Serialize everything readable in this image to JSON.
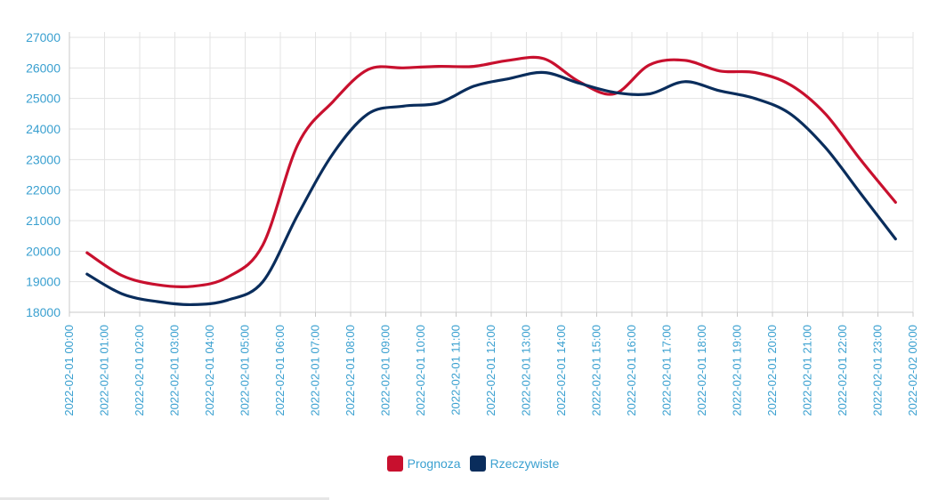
{
  "chart_data": {
    "type": "line",
    "ylim": [
      18000,
      27000
    ],
    "yticks": [
      18000,
      19000,
      20000,
      21000,
      22000,
      23000,
      24000,
      25000,
      26000,
      27000
    ],
    "xticks": [
      "2022-02-01 00:00",
      "2022-02-01 01:00",
      "2022-02-01 02:00",
      "2022-02-01 03:00",
      "2022-02-01 04:00",
      "2022-02-01 05:00",
      "2022-02-01 06:00",
      "2022-02-01 07:00",
      "2022-02-01 08:00",
      "2022-02-01 09:00",
      "2022-02-01 10:00",
      "2022-02-01 11:00",
      "2022-02-01 12:00",
      "2022-02-01 13:00",
      "2022-02-01 14:00",
      "2022-02-01 15:00",
      "2022-02-01 16:00",
      "2022-02-01 17:00",
      "2022-02-01 18:00",
      "2022-02-01 19:00",
      "2022-02-01 20:00",
      "2022-02-01 21:00",
      "2022-02-01 22:00",
      "2022-02-01 23:00",
      "2022-02-02 00:00"
    ],
    "x": [
      "2022-02-01 00:30",
      "2022-02-01 01:30",
      "2022-02-01 02:30",
      "2022-02-01 03:30",
      "2022-02-01 04:30",
      "2022-02-01 05:30",
      "2022-02-01 06:30",
      "2022-02-01 07:30",
      "2022-02-01 08:30",
      "2022-02-01 09:30",
      "2022-02-01 10:30",
      "2022-02-01 11:30",
      "2022-02-01 12:30",
      "2022-02-01 13:30",
      "2022-02-01 14:30",
      "2022-02-01 15:30",
      "2022-02-01 16:30",
      "2022-02-01 17:30",
      "2022-02-01 18:30",
      "2022-02-01 19:30",
      "2022-02-01 20:30",
      "2022-02-01 21:30",
      "2022-02-01 22:30",
      "2022-02-01 23:30"
    ],
    "series": [
      {
        "name": "Prognoza",
        "color": "#c8102e",
        "values": [
          19950,
          19200,
          18900,
          18850,
          19150,
          20200,
          23500,
          24900,
          25950,
          26000,
          26050,
          26050,
          26250,
          26300,
          25550,
          25150,
          26100,
          26250,
          25900,
          25850,
          25450,
          24500,
          23000,
          21600
        ]
      },
      {
        "name": "Rzeczywiste",
        "color": "#0a2d5c",
        "values": [
          19250,
          18600,
          18350,
          18250,
          18400,
          19000,
          21200,
          23200,
          24500,
          24750,
          24850,
          25400,
          25650,
          25850,
          25500,
          25200,
          25150,
          25550,
          25250,
          25000,
          24500,
          23400,
          21900,
          20400
        ]
      }
    ],
    "grid": true,
    "legend_position": "bottom-center"
  }
}
